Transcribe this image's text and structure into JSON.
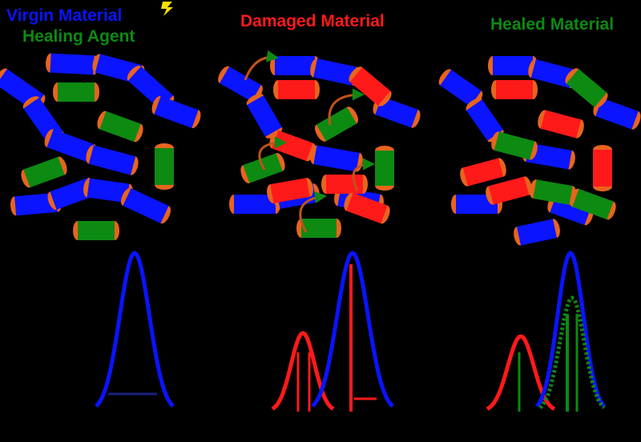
{
  "titles": {
    "virgin": "Virgin Material",
    "healing_agent": "Healing Agent",
    "damaged": "Damaged Material",
    "healed": "Healed Material"
  },
  "colors": {
    "background": "#000000",
    "matrix_blue": "#0a14ff",
    "damaged_red": "#ff1a1a",
    "healing_green": "#0d8a12",
    "chain_end_orange": "#e8641e",
    "arrow_orange": "#c0521c",
    "axis": "#000000"
  },
  "icons": {
    "lightning": "lightning-bolt-icon",
    "healing_arrow": "curved-arrow-icon"
  },
  "panels": [
    {
      "id": "virgin",
      "segments": [
        {
          "color": "blue",
          "count": 11
        },
        {
          "color": "green",
          "count": 6
        }
      ],
      "curves": [
        {
          "color": "blue",
          "type": "solid"
        }
      ]
    },
    {
      "id": "damaged",
      "segments": [
        {
          "color": "blue",
          "count": 9
        },
        {
          "color": "red",
          "count": 6
        },
        {
          "color": "green",
          "count": 4
        }
      ],
      "curves": [
        {
          "color": "red",
          "type": "solid"
        },
        {
          "color": "blue",
          "type": "solid"
        }
      ]
    },
    {
      "id": "healed",
      "segments": [
        {
          "color": "blue",
          "count": 9
        },
        {
          "color": "red",
          "count": 6
        },
        {
          "color": "green",
          "count": 4
        }
      ],
      "curves": [
        {
          "color": "red",
          "type": "solid"
        },
        {
          "color": "blue",
          "type": "solid"
        },
        {
          "color": "green",
          "type": "dashed"
        }
      ]
    }
  ]
}
